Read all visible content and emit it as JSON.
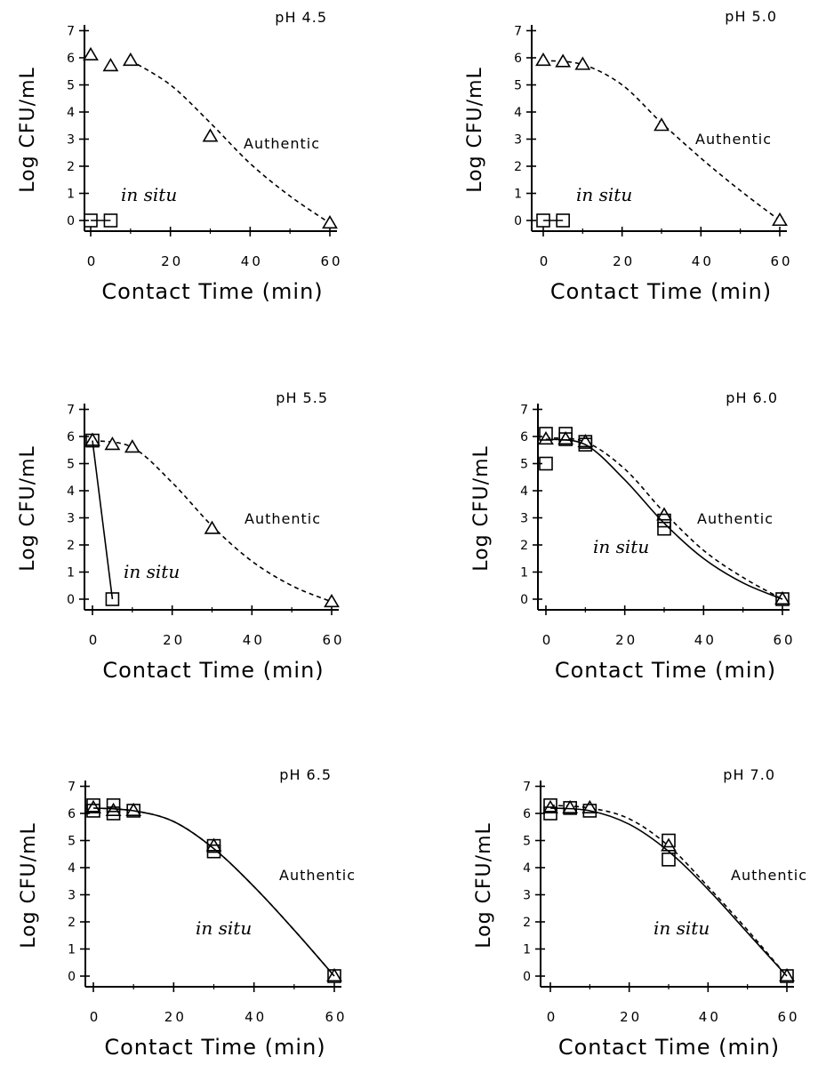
{
  "chart_data": [
    {
      "type": "scatter",
      "title": "pH 4.5",
      "xlabel": "Contact Time (min)",
      "ylabel": "Log CFU/mL",
      "xlim": [
        0,
        60
      ],
      "ylim": [
        0,
        7
      ],
      "xticks": [
        0,
        20,
        40,
        60
      ],
      "yticks": [
        0,
        1,
        2,
        3,
        4,
        5,
        6,
        7
      ],
      "series": [
        {
          "name": "Authentic",
          "marker": "triangle",
          "line": "dashed",
          "points": [
            [
              0,
              6.1
            ],
            [
              5,
              5.7
            ],
            [
              10,
              5.9
            ],
            [
              30,
              3.1
            ],
            [
              60,
              -0.1
            ]
          ],
          "curve": [
            [
              10,
              5.9
            ],
            [
              20,
              5.0
            ],
            [
              30,
              3.6
            ],
            [
              40,
              2.1
            ],
            [
              50,
              0.9
            ],
            [
              60,
              -0.1
            ]
          ]
        },
        {
          "name": "in situ",
          "marker": "square",
          "line": "solid",
          "points": [
            [
              0,
              0
            ],
            [
              5,
              0
            ]
          ],
          "curve": [
            [
              0,
              0
            ],
            [
              5,
              0
            ]
          ]
        }
      ]
    },
    {
      "type": "scatter",
      "title": "pH 5.0",
      "xlabel": "Contact Time (min)",
      "ylabel": "Log CFU/mL",
      "xlim": [
        0,
        60
      ],
      "ylim": [
        0,
        7
      ],
      "xticks": [
        0,
        20,
        40,
        60
      ],
      "yticks": [
        0,
        1,
        2,
        3,
        4,
        5,
        6,
        7
      ],
      "series": [
        {
          "name": "Authentic",
          "marker": "triangle",
          "line": "dashed",
          "points": [
            [
              0,
              5.9
            ],
            [
              5,
              5.85
            ],
            [
              10,
              5.75
            ],
            [
              30,
              3.5
            ],
            [
              60,
              0
            ]
          ],
          "curve": [
            [
              0,
              5.9
            ],
            [
              10,
              5.75
            ],
            [
              20,
              5.0
            ],
            [
              30,
              3.6
            ],
            [
              40,
              2.3
            ],
            [
              50,
              1.1
            ],
            [
              60,
              0
            ]
          ]
        },
        {
          "name": "in situ",
          "marker": "square",
          "line": "solid",
          "points": [
            [
              0,
              0
            ],
            [
              5,
              0
            ]
          ],
          "curve": [
            [
              0,
              0
            ],
            [
              5,
              0
            ]
          ]
        }
      ]
    },
    {
      "type": "scatter",
      "title": "pH 5.5",
      "xlabel": "Contact Time (min)",
      "ylabel": "Log CFU/mL",
      "xlim": [
        0,
        60
      ],
      "ylim": [
        0,
        7
      ],
      "xticks": [
        0,
        20,
        40,
        60
      ],
      "yticks": [
        0,
        1,
        2,
        3,
        4,
        5,
        6,
        7
      ],
      "series": [
        {
          "name": "Authentic",
          "marker": "triangle",
          "line": "dashed",
          "points": [
            [
              0,
              5.85
            ],
            [
              5,
              5.7
            ],
            [
              10,
              5.6
            ],
            [
              30,
              2.6
            ],
            [
              60,
              -0.1
            ]
          ],
          "curve": [
            [
              0,
              5.85
            ],
            [
              10,
              5.6
            ],
            [
              20,
              4.3
            ],
            [
              30,
              2.7
            ],
            [
              40,
              1.4
            ],
            [
              50,
              0.5
            ],
            [
              60,
              -0.1
            ]
          ]
        },
        {
          "name": "in situ",
          "marker": "square",
          "line": "solid",
          "points": [
            [
              0,
              5.85
            ],
            [
              5,
              0
            ]
          ],
          "curve": [
            [
              0,
              5.85
            ],
            [
              5,
              0
            ]
          ]
        }
      ]
    },
    {
      "type": "scatter",
      "title": "pH 6.0",
      "xlabel": "Contact Time (min)",
      "ylabel": "Log CFU/mL",
      "xlim": [
        0,
        60
      ],
      "ylim": [
        0,
        7
      ],
      "xticks": [
        0,
        20,
        40,
        60
      ],
      "yticks": [
        0,
        1,
        2,
        3,
        4,
        5,
        6,
        7
      ],
      "series": [
        {
          "name": "Authentic",
          "marker": "triangle",
          "line": "dashed",
          "points": [
            [
              0,
              5.9
            ],
            [
              5,
              5.9
            ],
            [
              10,
              5.8
            ],
            [
              30,
              3.1
            ],
            [
              60,
              0
            ]
          ],
          "curve": [
            [
              0,
              5.95
            ],
            [
              10,
              5.8
            ],
            [
              20,
              4.8
            ],
            [
              30,
              3.2
            ],
            [
              40,
              1.8
            ],
            [
              50,
              0.8
            ],
            [
              60,
              0
            ]
          ]
        },
        {
          "name": "in situ",
          "marker": "square",
          "line": "solid",
          "points": [
            [
              0,
              6.1
            ],
            [
              0,
              5.0
            ],
            [
              5,
              6.1
            ],
            [
              5,
              5.9
            ],
            [
              10,
              5.8
            ],
            [
              10,
              5.7
            ],
            [
              30,
              2.9
            ],
            [
              30,
              2.6
            ],
            [
              60,
              0
            ]
          ],
          "curve": [
            [
              0,
              5.9
            ],
            [
              10,
              5.7
            ],
            [
              20,
              4.4
            ],
            [
              30,
              2.8
            ],
            [
              40,
              1.5
            ],
            [
              50,
              0.6
            ],
            [
              60,
              0
            ]
          ]
        }
      ]
    },
    {
      "type": "scatter",
      "title": "pH 6.5",
      "xlabel": "Contact Time (min)",
      "ylabel": "Log CFU/mL",
      "xlim": [
        0,
        60
      ],
      "ylim": [
        0,
        7
      ],
      "xticks": [
        0,
        20,
        40,
        60
      ],
      "yticks": [
        0,
        1,
        2,
        3,
        4,
        5,
        6,
        7
      ],
      "series": [
        {
          "name": "Authentic",
          "marker": "triangle",
          "line": "dashed",
          "points": [
            [
              0,
              6.2
            ],
            [
              5,
              6.1
            ],
            [
              10,
              6.1
            ],
            [
              30,
              4.8
            ],
            [
              60,
              0
            ]
          ],
          "curve": [
            [
              0,
              6.2
            ],
            [
              10,
              6.1
            ],
            [
              20,
              5.7
            ],
            [
              30,
              4.7
            ],
            [
              40,
              3.3
            ],
            [
              50,
              1.7
            ],
            [
              60,
              0
            ]
          ]
        },
        {
          "name": "in situ",
          "marker": "square",
          "line": "solid",
          "points": [
            [
              0,
              6.3
            ],
            [
              0,
              6.1
            ],
            [
              5,
              6.3
            ],
            [
              5,
              6.0
            ],
            [
              10,
              6.1
            ],
            [
              30,
              4.8
            ],
            [
              30,
              4.6
            ],
            [
              60,
              0
            ]
          ],
          "curve": [
            [
              0,
              6.2
            ],
            [
              10,
              6.1
            ],
            [
              20,
              5.7
            ],
            [
              30,
              4.7
            ],
            [
              40,
              3.3
            ],
            [
              50,
              1.7
            ],
            [
              60,
              0
            ]
          ]
        }
      ]
    },
    {
      "type": "scatter",
      "title": "pH 7.0",
      "xlabel": "Contact Time (min)",
      "ylabel": "Log CFU/mL",
      "xlim": [
        0,
        60
      ],
      "ylim": [
        0,
        7
      ],
      "xticks": [
        0,
        20,
        40,
        60
      ],
      "yticks": [
        0,
        1,
        2,
        3,
        4,
        5,
        6,
        7
      ],
      "series": [
        {
          "name": "Authentic",
          "marker": "triangle",
          "line": "dashed",
          "points": [
            [
              0,
              6.2
            ],
            [
              5,
              6.2
            ],
            [
              10,
              6.2
            ],
            [
              30,
              4.8
            ],
            [
              60,
              0
            ]
          ],
          "curve": [
            [
              0,
              6.3
            ],
            [
              10,
              6.2
            ],
            [
              20,
              5.8
            ],
            [
              30,
              4.8
            ],
            [
              40,
              3.3
            ],
            [
              50,
              1.7
            ],
            [
              60,
              0
            ]
          ]
        },
        {
          "name": "in situ",
          "marker": "square",
          "line": "solid",
          "points": [
            [
              0,
              6.3
            ],
            [
              0,
              6.0
            ],
            [
              5,
              6.2
            ],
            [
              10,
              6.1
            ],
            [
              30,
              5.0
            ],
            [
              30,
              4.3
            ],
            [
              60,
              0
            ]
          ],
          "curve": [
            [
              0,
              6.2
            ],
            [
              10,
              6.1
            ],
            [
              20,
              5.6
            ],
            [
              30,
              4.6
            ],
            [
              40,
              3.2
            ],
            [
              50,
              1.6
            ],
            [
              60,
              0
            ]
          ]
        }
      ]
    }
  ]
}
